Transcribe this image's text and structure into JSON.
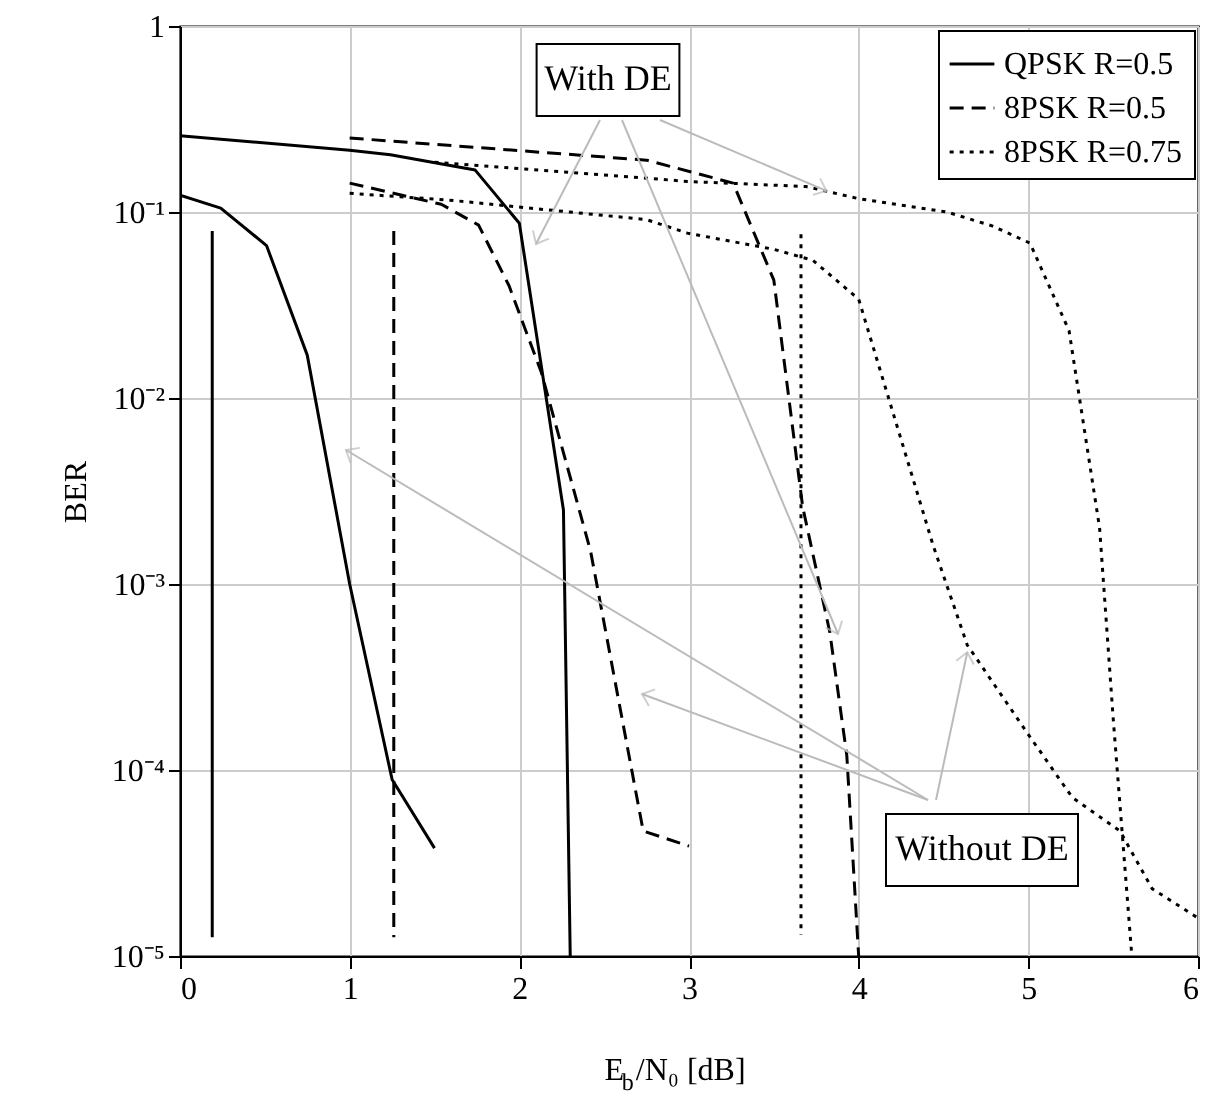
{
  "chart_data": {
    "type": "line",
    "xlabel": "E$_{b}$/N₀ [dB]",
    "ylabel": "BER",
    "log": "y",
    "grid": true,
    "legend": "top right",
    "xlim": [
      0,
      6
    ],
    "xticks": [
      0,
      1,
      2,
      3,
      4,
      5,
      6
    ],
    "ylim": [
      1e-05,
      1
    ],
    "yticks": [
      {
        "value": 1e-05,
        "label": "10⁻⁵"
      },
      {
        "value": 0.0001,
        "label": "10⁻⁴"
      },
      {
        "value": 0.001,
        "label": "10⁻³"
      },
      {
        "value": 0.01,
        "label": "10⁻²"
      },
      {
        "value": 0.1,
        "label": "10⁻¹"
      },
      {
        "value": 1,
        "label": "1"
      }
    ],
    "annotations": [
      {
        "text": "With DE",
        "x": 3.81,
        "y": 0.13
      },
      {
        "text": "Without DE",
        "x": 4.64,
        "y": 0.00043
      }
    ],
    "series": [
      {
        "name": "QPSK R=0.5",
        "color": "#000000",
        "line_style": "solid",
        "x": [
          0,
          1,
          1.24,
          1.74,
          2,
          2.26,
          2.3
        ],
        "values": [
          0.257,
          0.215,
          0.203,
          0.168,
          0.087,
          0.0025,
          1e-05
        ]
      },
      {
        "name": "8PSK R=0.5",
        "color": "#000000",
        "line_style": "dashed",
        "x": [
          1,
          2.75,
          3.26,
          3.5,
          3.67,
          3.83,
          3.93,
          4
        ],
        "values": [
          0.25,
          0.19,
          0.143,
          0.043,
          0.0026,
          0.00055,
          0.00012,
          1e-05
        ]
      },
      {
        "name": "8PSK R=0.75",
        "color": "#000000",
        "line_style": "dotted",
        "x": [
          1.5,
          2.75,
          2.99,
          3.69,
          4,
          4.52,
          4.79,
          5.01,
          5.24,
          5.42,
          5.5,
          5.61
        ],
        "values": [
          0.185,
          0.152,
          0.146,
          0.137,
          0.118,
          0.1,
          0.084,
          0.068,
          0.023,
          0.002,
          0.00019,
          1e-05
        ]
      },
      {
        "color": "#000000",
        "line_style": "solid",
        "x": [
          0,
          0.24,
          0.51,
          0.75,
          1,
          1.25,
          1.5
        ],
        "values": [
          0.123,
          0.105,
          0.066,
          0.017,
          0.001,
          8.9e-05,
          3.8e-05
        ]
      },
      {
        "color": "#000000",
        "line_style": "dashed",
        "x": [
          1,
          1.54,
          1.76,
          1.94,
          2.13,
          2.42,
          2.73,
          3
        ],
        "values": [
          0.143,
          0.11,
          0.085,
          0.04,
          0.0137,
          0.0015,
          4.7e-05,
          3.9e-05
        ]
      },
      {
        "color": "#000000",
        "line_style": "dotted",
        "x": [
          1,
          1.58,
          2.75,
          2.99,
          3.5,
          3.73,
          4,
          4.44,
          4.64,
          4.99,
          5.26,
          5.54,
          5.73,
          6
        ],
        "values": [
          0.126,
          0.116,
          0.091,
          0.077,
          0.063,
          0.055,
          0.034,
          0.0016,
          0.00047,
          0.00016,
          7.1e-05,
          4.7e-05,
          2.3e-05,
          1.6e-05
        ]
      },
      {
        "color": "#000000",
        "line_style": "solid",
        "x": [
          0.19,
          0.19
        ],
        "values": [
          0.079,
          1.26e-05
        ]
      },
      {
        "color": "#000000",
        "line_style": "dashed",
        "x": [
          1.26,
          1.26
        ],
        "values": [
          0.079,
          1.26e-05
        ]
      },
      {
        "color": "#000000",
        "line_style": "dotted",
        "x": [
          3.66,
          3.66
        ],
        "values": [
          0.076,
          1.3e-05
        ]
      }
    ]
  }
}
